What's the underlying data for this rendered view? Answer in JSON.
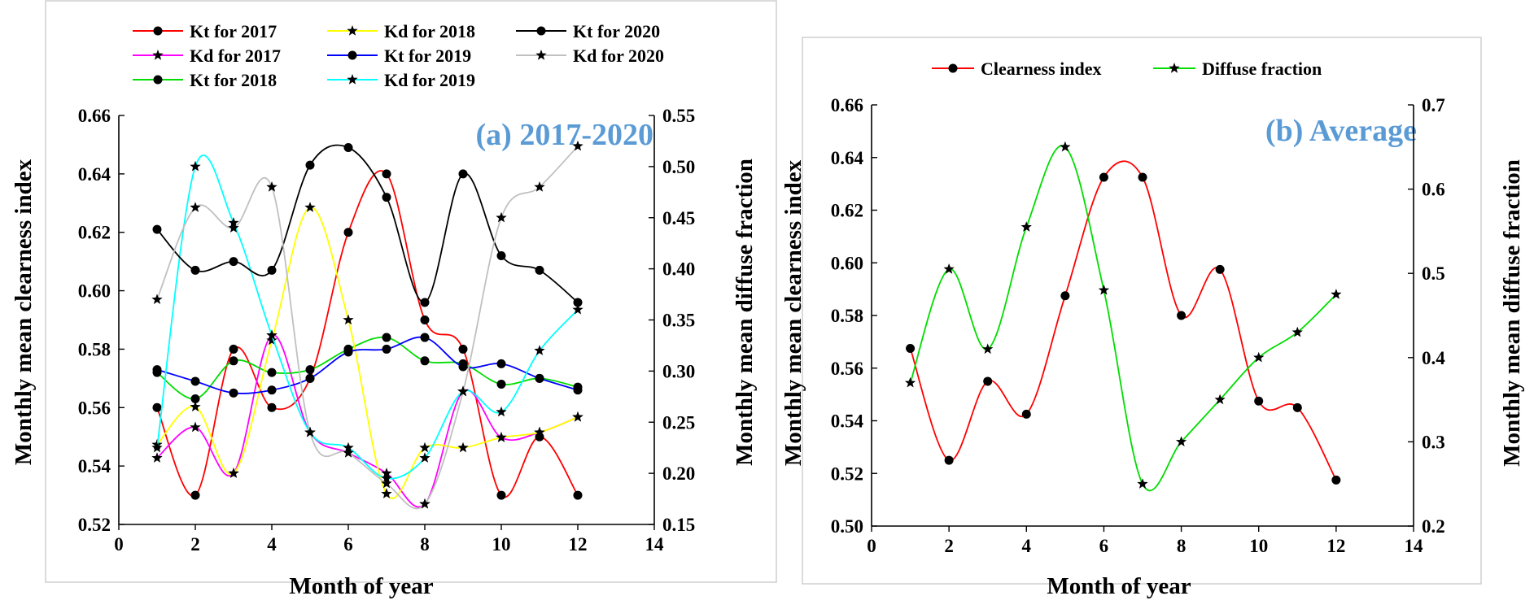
{
  "chart_data": [
    {
      "type": "line",
      "title": "(a) 2017-2020",
      "title_color": "#5b9bd5",
      "xlabel": "Month of  year",
      "ylabel_left": "Monthly  mean clearness index",
      "ylabel_right": "Monthly  mean diffuse  fraction",
      "xlim": [
        0,
        14
      ],
      "ylim_left": [
        0.52,
        0.66
      ],
      "ylim_right": [
        0.15,
        0.55
      ],
      "xticks": [
        0,
        2,
        4,
        6,
        8,
        10,
        12,
        14
      ],
      "yticks_left": [
        0.52,
        0.54,
        0.56,
        0.58,
        0.6,
        0.62,
        0.64,
        0.66
      ],
      "yticks_right": [
        0.15,
        0.2,
        0.25,
        0.3,
        0.35,
        0.4,
        0.45,
        0.5,
        0.55
      ],
      "x": [
        1,
        2,
        3,
        4,
        5,
        6,
        7,
        8,
        9,
        10,
        11,
        12
      ],
      "series": [
        {
          "name": "Kt for 2017",
          "color": "#ff0000",
          "marker": "circle",
          "axis": "left",
          "values": [
            0.56,
            0.53,
            0.58,
            0.56,
            0.57,
            0.62,
            0.64,
            0.59,
            0.58,
            0.53,
            0.55,
            0.53
          ]
        },
        {
          "name": "Kd for 2017",
          "color": "#ff00ff",
          "marker": "star",
          "axis": "right",
          "values": [
            0.215,
            0.245,
            0.2,
            0.335,
            0.24,
            0.22,
            0.2,
            0.17,
            0.28,
            0.235,
            0.24,
            0.255
          ]
        },
        {
          "name": "Kt for 2018",
          "color": "#00dd00",
          "marker": "circle",
          "axis": "left",
          "values": [
            0.572,
            0.563,
            0.576,
            0.572,
            0.573,
            0.58,
            0.584,
            0.576,
            0.575,
            0.568,
            0.57,
            0.567
          ]
        },
        {
          "name": "Kd for 2018",
          "color": "#ffff00",
          "marker": "star",
          "axis": "right",
          "values": [
            0.228,
            0.265,
            0.2,
            0.33,
            0.46,
            0.35,
            0.18,
            0.225,
            0.225,
            0.235,
            0.24,
            0.255
          ]
        },
        {
          "name": "Kt for 2019",
          "color": "#0000ff",
          "marker": "circle",
          "axis": "left",
          "values": [
            0.573,
            0.569,
            0.565,
            0.566,
            0.57,
            0.579,
            0.58,
            0.584,
            0.574,
            0.575,
            0.57,
            0.566
          ]
        },
        {
          "name": "Kd for 2019",
          "color": "#00ffff",
          "marker": "star",
          "axis": "right",
          "values": [
            0.225,
            0.5,
            0.445,
            0.335,
            0.24,
            0.225,
            0.195,
            0.215,
            0.28,
            0.26,
            0.32,
            0.36
          ]
        },
        {
          "name": "Kt for 2020",
          "color": "#000000",
          "marker": "circle",
          "axis": "left",
          "values": [
            0.621,
            0.607,
            0.61,
            0.607,
            0.643,
            0.649,
            0.632,
            0.596,
            0.64,
            0.612,
            0.607,
            0.596
          ]
        },
        {
          "name": "Kd for 2020",
          "color": "#c0c0c0",
          "marker": "star",
          "axis": "right",
          "values": [
            0.37,
            0.46,
            0.44,
            0.48,
            0.24,
            0.22,
            0.19,
            0.17,
            0.28,
            0.45,
            0.48,
            0.52
          ]
        }
      ],
      "legend": "top"
    },
    {
      "type": "line",
      "title": "(b) Average",
      "title_color": "#5b9bd5",
      "xlabel": "Month of  year",
      "ylabel_left": "Monthly  mean clearness index",
      "ylabel_right": "Monthly  mean diffuse  fraction",
      "xlim": [
        0,
        14
      ],
      "ylim_left": [
        0.5,
        0.66
      ],
      "ylim_right": [
        0.2,
        0.7
      ],
      "xticks": [
        0,
        2,
        4,
        6,
        8,
        10,
        12,
        14
      ],
      "yticks_left": [
        0.5,
        0.52,
        0.54,
        0.56,
        0.58,
        0.6,
        0.62,
        0.64,
        0.66
      ],
      "yticks_right": [
        0.2,
        0.3,
        0.4,
        0.5,
        0.6,
        0.7
      ],
      "x": [
        1,
        2,
        3,
        4,
        5,
        6,
        7,
        8,
        9,
        10,
        11,
        12
      ],
      "series": [
        {
          "name": "Clearness index",
          "color": "#ff0000",
          "marker": "circle",
          "axis": "left",
          "values": [
            0.5675,
            0.525,
            0.555,
            0.5425,
            0.5875,
            0.6325,
            0.6325,
            0.58,
            0.5975,
            0.5475,
            0.545,
            0.5175
          ]
        },
        {
          "name": "Diffuse fraction",
          "color": "#00dd00",
          "marker": "star",
          "axis": "right",
          "values": [
            0.37,
            0.505,
            0.41,
            0.555,
            0.65,
            0.48,
            0.25,
            0.3,
            0.35,
            0.4,
            0.43,
            0.475
          ]
        }
      ],
      "legend": "top"
    }
  ]
}
